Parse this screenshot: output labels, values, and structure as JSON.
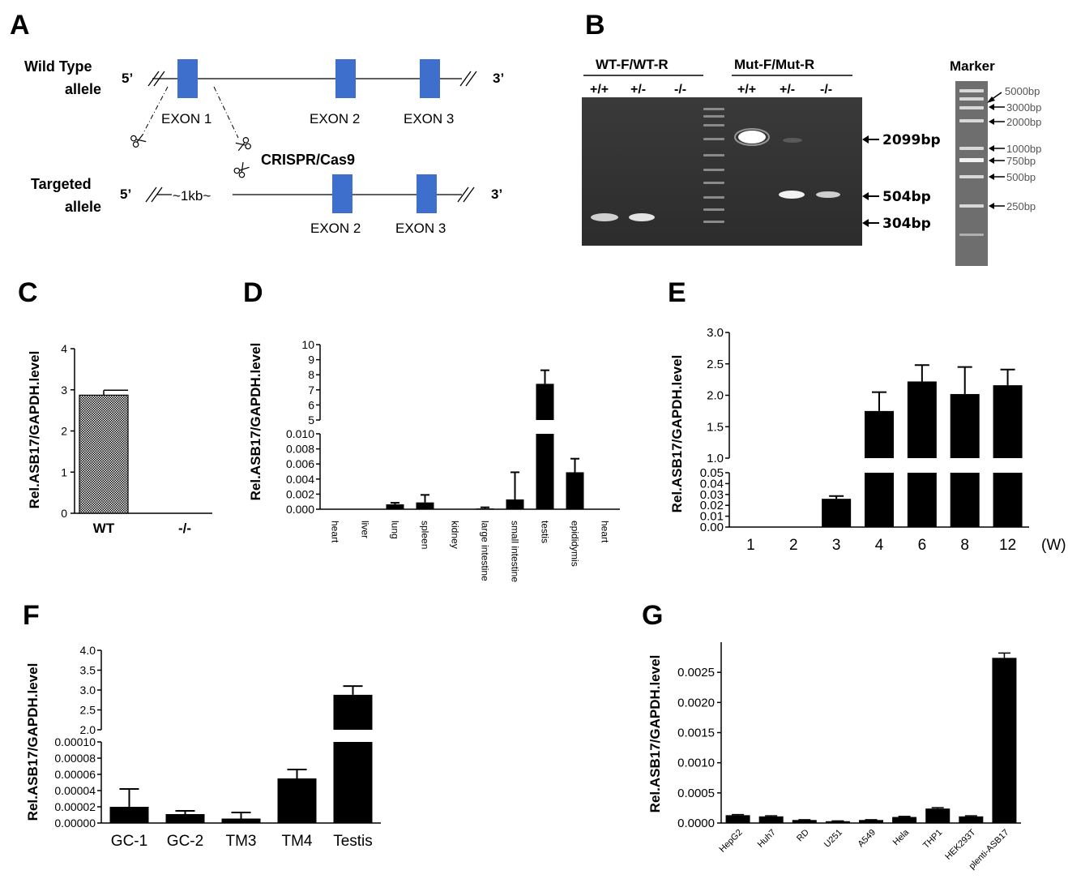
{
  "panels": {
    "A": {
      "letter": "A",
      "wt_label_1": "Wild Type",
      "wt_label_2": "allele",
      "tg_label_1": "Targeted",
      "tg_label_2": "allele",
      "five_prime": "5’",
      "three_prime": "3’",
      "exon1": "EXON 1",
      "exon2": "EXON 2",
      "exon3": "EXON 3",
      "crispr": "CRISPR/Cas9",
      "deletion": "~1kb~",
      "scissor_icon": "scissors-icon",
      "exon_color": "#3f6fcc"
    },
    "B": {
      "letter": "B",
      "group1": "WT-F/WT-R",
      "group2": "Mut-F/Mut-R",
      "lanes1": [
        "+/+",
        "+/-",
        "-/-"
      ],
      "lanes2": [
        "+/+",
        "+/-",
        "-/-"
      ],
      "bands": [
        "2099bp",
        "504bp",
        "304bp"
      ],
      "marker_title": "Marker",
      "marker_bands": [
        "5000bp",
        "3000bp",
        "2000bp",
        "1000bp",
        "750bp",
        "500bp",
        "250bp"
      ]
    },
    "C": {
      "letter": "C"
    },
    "D": {
      "letter": "D"
    },
    "E": {
      "letter": "E",
      "unit": "(W)"
    },
    "F": {
      "letter": "F"
    },
    "G": {
      "letter": "G"
    }
  },
  "chart_data": [
    {
      "panel": "C",
      "type": "bar",
      "ylabel": "Rel.ASB17/GAPDH.level",
      "categories": [
        "WT",
        "-/-"
      ],
      "values": [
        2.87,
        0
      ],
      "errors": [
        0.12,
        0
      ],
      "ylim": [
        0,
        4
      ],
      "yticks": [
        "0",
        "1",
        "2",
        "3",
        "4"
      ],
      "fill": "checkered"
    },
    {
      "panel": "D",
      "type": "bar",
      "ylabel": "Rel.ASB17/GAPDH.level",
      "axis_break": true,
      "categories": [
        "heart",
        "liver",
        "lung",
        "spleen",
        "kidney",
        "large intestine",
        "small intestine",
        "testis",
        "epididymis",
        "heart"
      ],
      "values": [
        1e-05,
        3e-05,
        0.00065,
        0.0009,
        3e-05,
        0.0001,
        0.0013,
        7.4,
        0.0049,
        5e-05
      ],
      "errors": [
        0,
        0,
        0.0002,
        0.001,
        0,
        0.00015,
        0.0036,
        0.9,
        0.0018,
        0
      ],
      "lower_ylim": [
        0,
        0.01
      ],
      "upper_ylim": [
        5,
        10
      ],
      "lower_ticks": [
        "0.000",
        "0.002",
        "0.004",
        "0.006",
        "0.008",
        "0.010"
      ],
      "upper_ticks": [
        "5",
        "6",
        "7",
        "8",
        "9",
        "10"
      ]
    },
    {
      "panel": "E",
      "type": "bar",
      "ylabel": "Rel.ASB17/GAPDH.level",
      "axis_break": true,
      "categories": [
        "1",
        "2",
        "3",
        "4",
        "6",
        "8",
        "12"
      ],
      "values": [
        0,
        0,
        0.026,
        1.75,
        2.22,
        2.02,
        2.16
      ],
      "errors": [
        0,
        0,
        0.0025,
        0.3,
        0.26,
        0.43,
        0.25
      ],
      "lower_ylim": [
        0,
        0.05
      ],
      "upper_ylim": [
        1.0,
        3.0
      ],
      "lower_ticks": [
        "0.00",
        "0.01",
        "0.02",
        "0.03",
        "0.04",
        "0.05"
      ],
      "upper_ticks": [
        "1.0",
        "1.5",
        "2.0",
        "2.5",
        "3.0"
      ]
    },
    {
      "panel": "F",
      "type": "bar",
      "ylabel": "Rel.ASB17/GAPDH.level",
      "axis_break": true,
      "categories": [
        "GC-1",
        "GC-2",
        "TM3",
        "TM4",
        "Testis"
      ],
      "values": [
        2e-05,
        1.1e-05,
        5.5e-06,
        5.5e-05,
        2.88
      ],
      "errors": [
        2.2e-05,
        4e-06,
        7.5e-06,
        1.1e-05,
        0.22
      ],
      "lower_ylim": [
        0,
        0.0001
      ],
      "upper_ylim": [
        2.0,
        4.0
      ],
      "lower_ticks": [
        "0.00000",
        "0.00002",
        "0.00004",
        "0.00006",
        "0.00008",
        "0.00010"
      ],
      "upper_ticks": [
        "2.0",
        "2.5",
        "3.0",
        "3.5",
        "4.0"
      ]
    },
    {
      "panel": "G",
      "type": "bar",
      "ylabel": "Rel.ASB17/GAPDH.level",
      "categories": [
        "HepG2",
        "Huh7",
        "RD",
        "U251",
        "A549",
        "Hela",
        "THP1",
        "HEK293T",
        "plenti-ASB17"
      ],
      "values": [
        0.00013,
        0.00011,
        5e-05,
        3e-05,
        5e-05,
        0.0001,
        0.00024,
        0.00011,
        0.00274
      ],
      "errors": [
        1e-05,
        1e-05,
        5e-06,
        5e-06,
        5e-06,
        1e-05,
        1.5e-05,
        1e-05,
        8e-05
      ],
      "ylim": [
        0,
        0.003
      ],
      "yticks": [
        "0.0000",
        "0.0005",
        "0.0010",
        "0.0015",
        "0.0020",
        "0.0025"
      ]
    }
  ]
}
